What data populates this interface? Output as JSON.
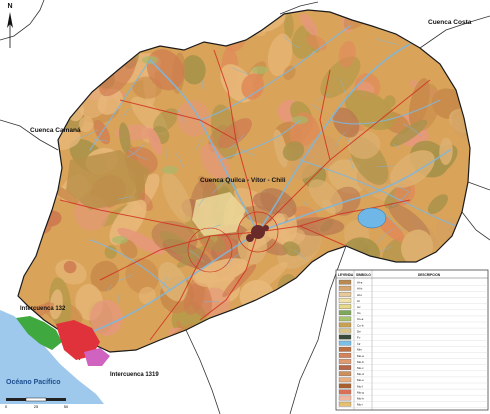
{
  "map": {
    "labels": {
      "cuenca_costa": "Cuenca Costa",
      "cuenca_camana": "Cuenca Camaná",
      "cuenca_central": "Cuenca Quilca - Vítor - Chili",
      "intercuenca_west": "Intercuenca 132",
      "intercuenca_south": "Intercuenca 1319",
      "ocean": "Océano Pacífico"
    },
    "north_arrow": {
      "letter": "N"
    },
    "scale_bar": {
      "labels": [
        "0",
        "25",
        "50"
      ]
    },
    "legend": {
      "headers": {
        "col1": "LEYENDA",
        "col2": "SIMBOLO",
        "col3": "DESCRIPCION"
      },
      "rows": [
        {
          "code": "Al-a",
          "swatch": "#b88a52",
          "desc": ""
        },
        {
          "code": "Al-b",
          "swatch": "#d6a66e",
          "desc": ""
        },
        {
          "code": "Al-c",
          "swatch": "#e8c99a",
          "desc": ""
        },
        {
          "code": "Ar",
          "swatch": "#f2e3a8",
          "desc": ""
        },
        {
          "code": "Av",
          "swatch": "#e6d98a",
          "desc": ""
        },
        {
          "code": "Cs",
          "swatch": "#7ea85a",
          "desc": ""
        },
        {
          "code": "Cs-a",
          "swatch": "#a8c46e",
          "desc": ""
        },
        {
          "code": "Co-b",
          "swatch": "#c8a050",
          "desc": ""
        },
        {
          "code": "De",
          "swatch": "#d9c48a",
          "desc": ""
        },
        {
          "code": "Fv",
          "swatch": "#3a4a38",
          "desc": ""
        },
        {
          "code": "Lg",
          "swatch": "#7ac0e8",
          "desc": ""
        },
        {
          "code": "Mm",
          "swatch": "#c07040",
          "desc": ""
        },
        {
          "code": "Mo-a",
          "swatch": "#d4845a",
          "desc": ""
        },
        {
          "code": "Mo-b",
          "swatch": "#e09a70",
          "desc": ""
        },
        {
          "code": "Mo-c",
          "swatch": "#b86848",
          "desc": ""
        },
        {
          "code": "Mo-d",
          "swatch": "#cc9060",
          "desc": ""
        },
        {
          "code": "Mo-e",
          "swatch": "#e8b080",
          "desc": ""
        },
        {
          "code": "Mo-f",
          "swatch": "#a86030",
          "desc": ""
        },
        {
          "code": "Mo-g",
          "swatch": "#d87058",
          "desc": ""
        },
        {
          "code": "Mo-h",
          "swatch": "#f0b8a0",
          "desc": ""
        },
        {
          "code": "Mo-i",
          "swatch": "#e6c070",
          "desc": ""
        }
      ]
    },
    "colors": {
      "ocean": "#9ec8ec",
      "land_outside": "#ffffff",
      "basin_tan": "#d9a35a",
      "basin_orange": "#e08a58",
      "basin_olive": "#b79a4a",
      "basin_salmon": "#e6987a",
      "river_blue": "#7fb6dc",
      "road_red": "#d03020",
      "boundary": "#222222",
      "lake": "#6fb7e6",
      "urban": "#6a2a2a",
      "coast_green": "#3fa83f",
      "coast_red": "#e0323a",
      "coast_magenta": "#d062c0"
    }
  }
}
